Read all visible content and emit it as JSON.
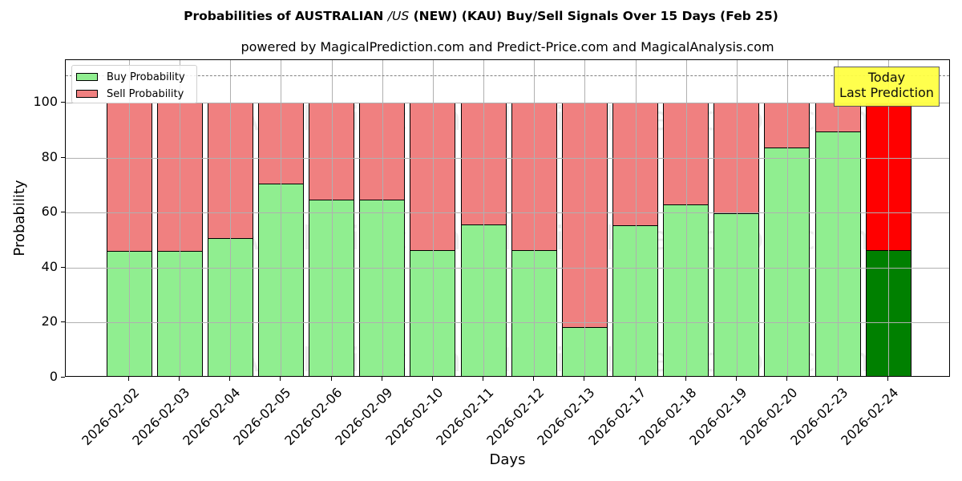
{
  "chart_data": {
    "type": "bar",
    "stacked": true,
    "title_parts": [
      "Probabilities of AUSTRALIAN ",
      "/US",
      " (NEW) (KAU) Buy/Sell Signals Over 15 Days (Feb 25)"
    ],
    "title": "Probabilities of AUSTRALIAN /US (NEW) (KAU) Buy/Sell Signals Over 15 Days (Feb 25)",
    "subtitle": "powered by MagicalPrediction.com and Predict-Price.com and MagicalAnalysis.com",
    "xlabel": "Days",
    "ylabel": "Probability",
    "ylim": [
      0,
      115
    ],
    "yticks": [
      0,
      20,
      40,
      60,
      80,
      100
    ],
    "grid": true,
    "legend_position": "upper left",
    "reference_line": {
      "y": 110,
      "style": "dashed",
      "color": "#808080"
    },
    "categories": [
      "2026-02-02",
      "2026-02-03",
      "2026-02-04",
      "2026-02-05",
      "2026-02-06",
      "2026-02-09",
      "2026-02-10",
      "2026-02-11",
      "2026-02-12",
      "2026-02-13",
      "2026-02-17",
      "2026-02-18",
      "2026-02-19",
      "2026-02-20",
      "2026-02-23",
      "2026-02-24"
    ],
    "series": [
      {
        "name": "Buy Probability",
        "color": "#90ee90",
        "highlight_color": "#008000",
        "values": [
          46.2,
          46.2,
          50.7,
          70.5,
          64.6,
          64.6,
          46.4,
          55.6,
          46.4,
          18.3,
          55.3,
          63.1,
          59.7,
          83.6,
          89.6,
          46.3
        ]
      },
      {
        "name": "Sell Probability",
        "color": "#f08080",
        "highlight_color": "#ff0000",
        "values": [
          53.8,
          53.8,
          49.3,
          29.5,
          35.4,
          35.4,
          53.6,
          44.4,
          53.6,
          81.7,
          44.7,
          36.9,
          40.3,
          16.4,
          10.4,
          53.7
        ]
      }
    ],
    "annotation": {
      "line1": "Today",
      "line2": "Last Prediction",
      "background": "#ffff44"
    },
    "watermarks": [
      "MagicalAnalysis.com",
      "MagicalPrediction.com"
    ]
  }
}
